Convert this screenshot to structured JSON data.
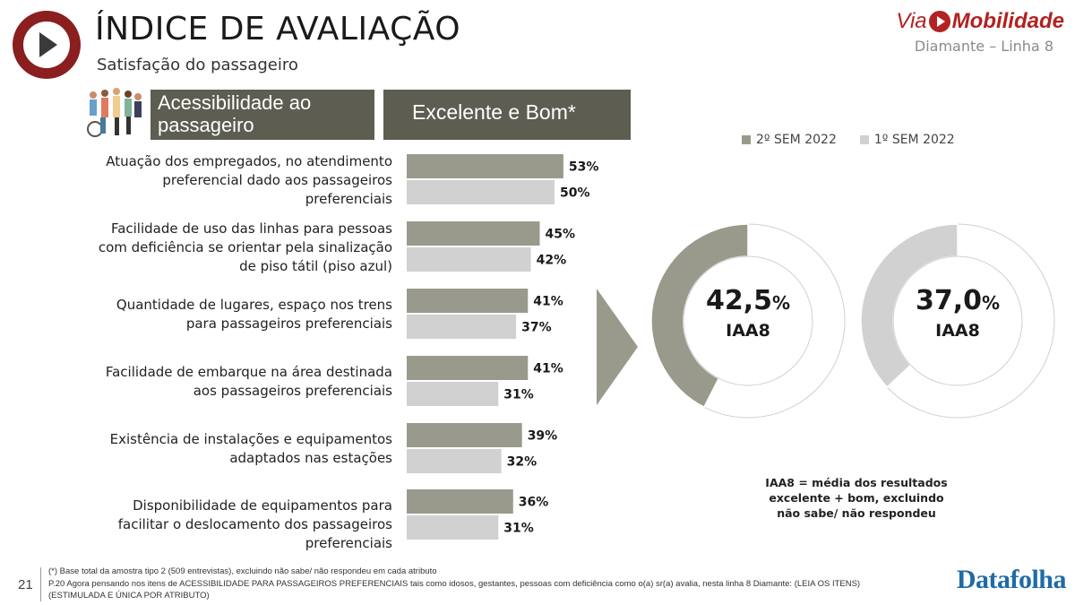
{
  "header": {
    "title": "ÍNDICE DE AVALIAÇÃO",
    "subtitle": "Satisfação do passageiro",
    "brand_prefix": "Via",
    "brand_name": "Mobilidade",
    "brand_line": "Diamante – Linha 8"
  },
  "section": {
    "category_title": "Acessibilidade ao passageiro",
    "metric_title": "Excelente e Bom*"
  },
  "legend": [
    {
      "label": "2º SEM 2022",
      "color": "#9a9a8c"
    },
    {
      "label": "1º SEM 2022",
      "color": "#d1d1d1"
    }
  ],
  "chart_data": [
    {
      "type": "bar",
      "orientation": "horizontal",
      "categories": [
        "Atuação dos empregados, no atendimento preferencial dado aos passageiros preferenciais",
        "Facilidade de uso das linhas para pessoas com deficiência se orientar pela sinalização de piso tátil (piso azul)",
        "Quantidade de lugares, espaço nos trens para passageiros preferenciais",
        "Facilidade de embarque na área destinada aos passageiros preferenciais",
        "Existência de instalações e equipamentos adaptados nas estações",
        "Disponibilidade de equipamentos para facilitar o deslocamento dos passageiros preferenciais"
      ],
      "series": [
        {
          "name": "2º SEM 2022",
          "values": [
            53,
            45,
            41,
            41,
            39,
            36
          ],
          "labels": [
            "53%",
            "45%",
            "41%",
            "41%",
            "39%",
            "36%"
          ],
          "color": "#9a9a8c"
        },
        {
          "name": "1º SEM 2022",
          "values": [
            50,
            42,
            37,
            31,
            32,
            31
          ],
          "labels": [
            "50%",
            "42%",
            "37%",
            "31%",
            "32%",
            "31%"
          ],
          "color": "#d1d1d1"
        }
      ],
      "xlim": [
        0,
        100
      ]
    },
    {
      "type": "pie",
      "variant": "donut",
      "series_name": "2º SEM 2022",
      "value": 42.5,
      "number": "42,5",
      "unit": "%",
      "label": "IAA8",
      "color": "#9a9a8c"
    },
    {
      "type": "pie",
      "variant": "donut",
      "series_name": "1º SEM 2022",
      "value": 37.0,
      "number": "37,0",
      "unit": "%",
      "label": "IAA8",
      "color": "#d1d1d1"
    }
  ],
  "note": "IAA8 = média dos resultados excelente + bom, excluindo não sabe/ não respondeu",
  "footer": {
    "page_number": "21",
    "footnote_1": "(*) Base total da amostra tipo 2 (509 entrevistas), excluindo não sabe/ não respondeu em cada atributo",
    "footnote_2": "P.20 Agora pensando nos itens de ACESSIBILIDADE PARA PASSAGEIROS PREFERENCIAIS tais como idosos, gestantes, pessoas com deficiência como o(a) sr(a) avalia, nesta linha 8 Diamante: (LEIA OS ITENS)",
    "footnote_3": "(ESTIMULADA E ÚNICA POR ATRIBUTO)",
    "source_logo": "Datafolha"
  }
}
